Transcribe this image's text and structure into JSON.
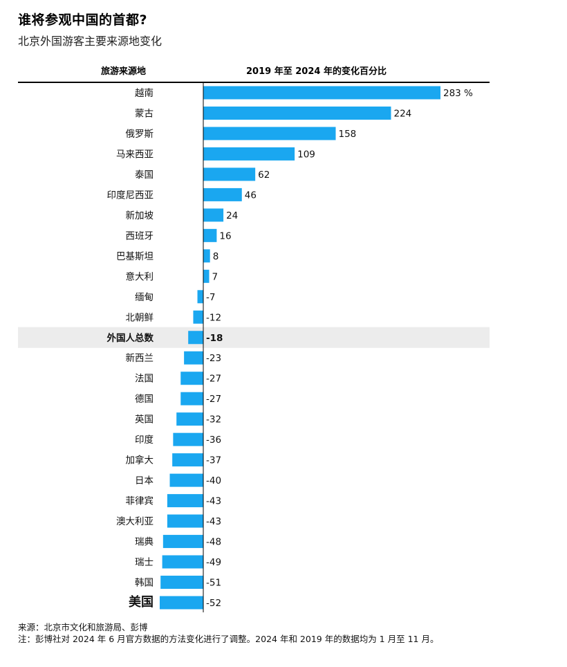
{
  "title": "谁将参观中国的首都?",
  "subtitle": "北京外国游客主要来源地变化",
  "column_headers": {
    "category": "旅游来源地",
    "value": "2019 年至 2024 年的变化百分比"
  },
  "chart_data": {
    "type": "bar",
    "orientation": "horizontal",
    "categories": [
      "越南",
      "蒙古",
      "俄罗斯",
      "马来西亚",
      "泰国",
      "印度尼西亚",
      "新加坡",
      "西班牙",
      "巴基斯坦",
      "意大利",
      "缅甸",
      "北朝鲜",
      "外国人总数",
      "新西兰",
      "法国",
      "德国",
      "英国",
      "印度",
      "加拿大",
      "日本",
      "菲律宾",
      "澳大利亚",
      "瑞典",
      "瑞士",
      "韩国",
      "美国"
    ],
    "values": [
      283,
      224,
      158,
      109,
      62,
      46,
      24,
      16,
      8,
      7,
      -7,
      -12,
      -18,
      -23,
      -27,
      -27,
      -32,
      -36,
      -37,
      -40,
      -43,
      -43,
      -48,
      -49,
      -51,
      -52
    ],
    "value_labels": [
      "283 %",
      "224",
      "158",
      "109",
      "62",
      "46",
      "24",
      "16",
      "8",
      "7",
      "-7",
      "-12",
      "-18",
      "-23",
      "-27",
      "-27",
      "-32",
      "-36",
      "-37",
      "-40",
      "-43",
      "-43",
      "-48",
      "-49",
      "-51",
      "-52"
    ],
    "highlighted_category": "外国人总数",
    "emphasized_category": "美国",
    "xlim": [
      -60,
      300
    ],
    "bar_color": "#1aa7f0",
    "highlight_row_color": "#ececec",
    "grid": false
  },
  "footer": {
    "source": "来源：北京市文化和旅游局、彭博",
    "note": "注：彭博社对 2024 年 6 月官方数据的方法变化进行了调整。2024 年和 2019 年的数据均为 1 月至 11 月。"
  }
}
